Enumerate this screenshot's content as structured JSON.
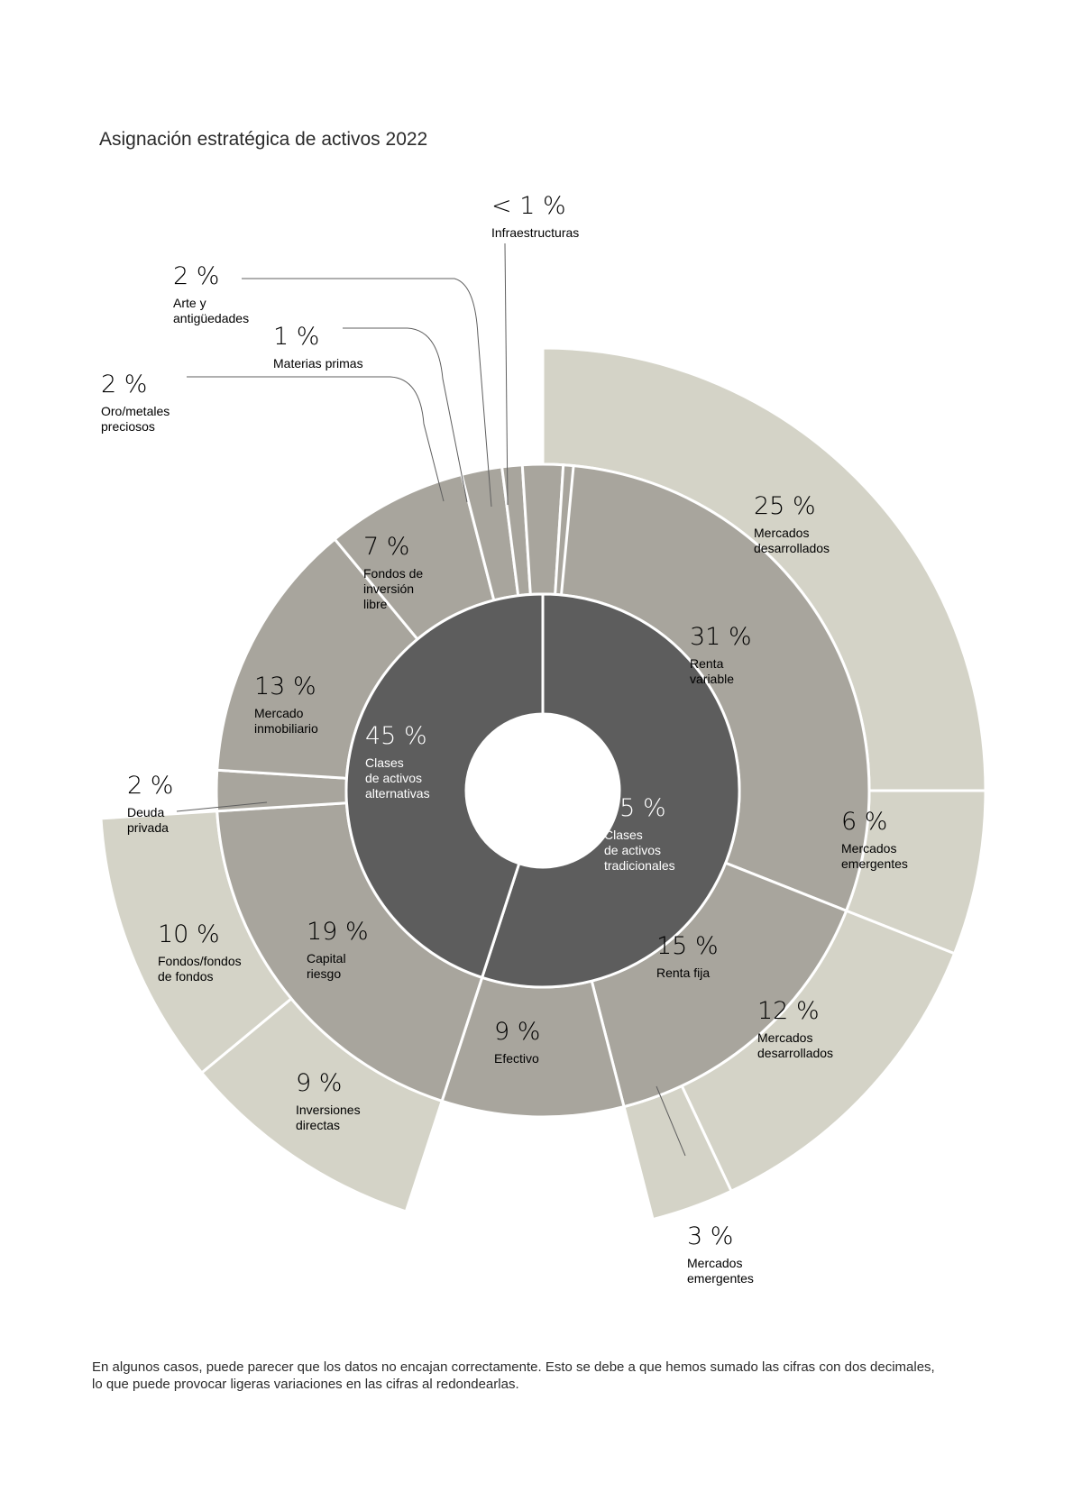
{
  "title": "Asignación estratégica de activos 2022",
  "footnote_line1": "En algunos casos, puede parecer que los datos no encajan correctamente. Esto se debe a que hemos sumado las cifras con dos decimales,",
  "footnote_line2": "lo que puede provocar ligeras variaciones en las cifras al redondearlas.",
  "chart_data": {
    "type": "sunburst",
    "colors": {
      "level1": "#5d5d5d",
      "level2": "#a8a59d",
      "level3": "#d4d3c7",
      "separator": "#ffffff",
      "text": "#2b2b2b"
    },
    "level1": [
      {
        "id": "trad",
        "value": 55,
        "pct_label": "55 %",
        "label": [
          "Clases",
          "de activos",
          "tradicionales"
        ]
      },
      {
        "id": "alt",
        "value": 45,
        "pct_label": "45 %",
        "label": [
          "Clases",
          "de activos",
          "alternativas"
        ]
      }
    ],
    "level2": [
      {
        "id": "rv",
        "parent": "trad",
        "value": 31,
        "pct_label": "31 %",
        "label": [
          "Renta",
          "variable"
        ]
      },
      {
        "id": "rf",
        "parent": "trad",
        "value": 15,
        "pct_label": "15 %",
        "label": [
          "Renta fija"
        ]
      },
      {
        "id": "ef",
        "parent": "trad",
        "value": 9,
        "pct_label": "9 %",
        "label": [
          "Efectivo"
        ]
      },
      {
        "id": "cr",
        "parent": "alt",
        "value": 19,
        "pct_label": "19 %",
        "label": [
          "Capital",
          "riesgo"
        ]
      },
      {
        "id": "dp",
        "parent": "alt",
        "value": 2,
        "pct_label": "2 %",
        "label": [
          "Deuda",
          "privada"
        ]
      },
      {
        "id": "mi",
        "parent": "alt",
        "value": 13,
        "pct_label": "13 %",
        "label": [
          "Mercado",
          "inmobiliario"
        ]
      },
      {
        "id": "fi",
        "parent": "alt",
        "value": 7,
        "pct_label": "7 %",
        "label": [
          "Fondos de",
          "inversión",
          "libre"
        ]
      },
      {
        "id": "om",
        "parent": "alt",
        "value": 2,
        "pct_label": "2 %",
        "label": [
          "Oro/metales",
          "preciosos"
        ]
      },
      {
        "id": "mp",
        "parent": "alt",
        "value": 1,
        "pct_label": "1 %",
        "label": [
          "Materias primas"
        ]
      },
      {
        "id": "aa",
        "parent": "alt",
        "value": 2,
        "pct_label": "2 %",
        "label": [
          "Arte y",
          "antigüedades"
        ]
      },
      {
        "id": "in",
        "parent": "alt",
        "value": 0.5,
        "pct_label": "< 1 %",
        "label": [
          "Infraestructuras"
        ]
      }
    ],
    "level3": [
      {
        "id": "rv_md",
        "parent": "rv",
        "value": 25,
        "pct_label": "25 %",
        "label": [
          "Mercados",
          "desarrollados"
        ]
      },
      {
        "id": "rv_me",
        "parent": "rv",
        "value": 6,
        "pct_label": "6 %",
        "label": [
          "Mercados",
          "emergentes"
        ]
      },
      {
        "id": "rf_md",
        "parent": "rf",
        "value": 12,
        "pct_label": "12 %",
        "label": [
          "Mercados",
          "desarrollados"
        ]
      },
      {
        "id": "rf_me",
        "parent": "rf",
        "value": 3,
        "pct_label": "3 %",
        "label": [
          "Mercados",
          "emergentes"
        ]
      },
      {
        "id": "cr_id",
        "parent": "cr",
        "value": 9,
        "pct_label": "9 %",
        "label": [
          "Inversiones",
          "directas"
        ]
      },
      {
        "id": "cr_ff",
        "parent": "cr",
        "value": 10,
        "pct_label": "10 %",
        "label": [
          "Fondos/fondos",
          "de fondos"
        ]
      }
    ]
  }
}
